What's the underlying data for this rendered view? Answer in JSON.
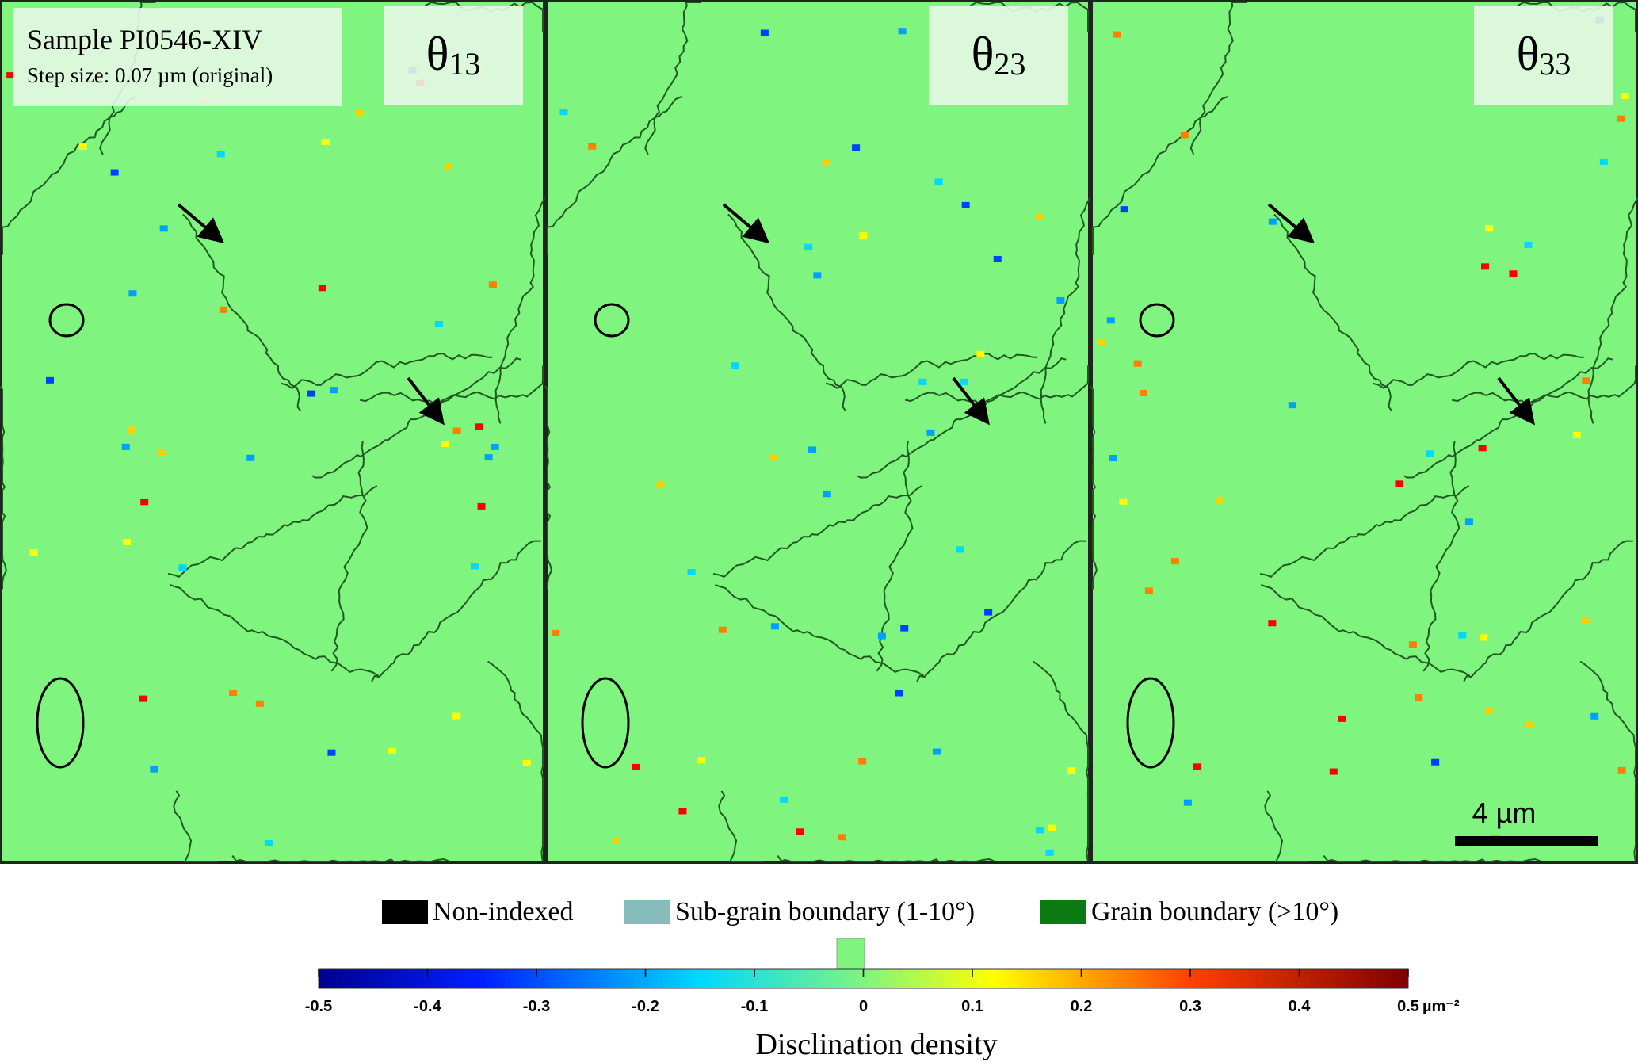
{
  "panels": [
    {
      "symbol": "θ",
      "index": "13"
    },
    {
      "symbol": "θ",
      "index": "23"
    },
    {
      "symbol": "θ",
      "index": "33"
    }
  ],
  "sample": {
    "name": "Sample PI0546-XIV",
    "step": "Step size: 0.07 µm (original)"
  },
  "scale_bar": "4 µm",
  "legend": [
    {
      "label": "Non-indexed",
      "color": "#000000"
    },
    {
      "label": "Sub-grain boundary (1-10°)",
      "color": "#86bcbc"
    },
    {
      "label": "Grain boundary (>10°)",
      "color": "#0b7a12"
    }
  ],
  "colorbar": {
    "label": "Disclination density",
    "lim": [
      -0.5,
      0.5
    ],
    "ticks": [
      -0.5,
      -0.4,
      -0.3,
      -0.2,
      -0.1,
      0,
      0.1,
      0.2,
      0.3,
      0.4,
      0.5
    ],
    "unit": "µm⁻²"
  }
}
